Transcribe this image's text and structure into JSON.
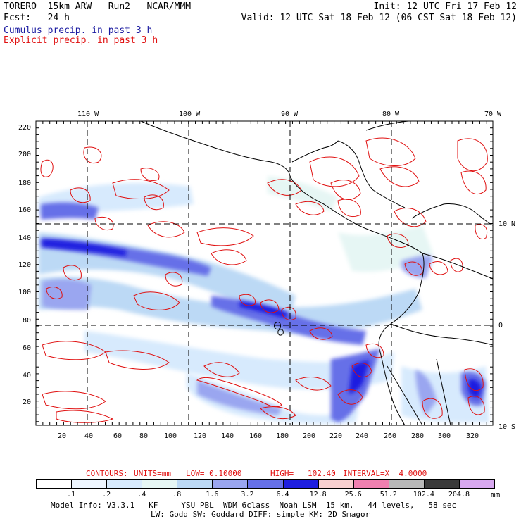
{
  "header": {
    "line1_left": "TORERO  15km ARW   Run2   NCAR/MMM",
    "line1_right": "Init: 12 UTC Fri 17 Feb 12",
    "line2_left": "Fcst:   24 h",
    "line2_right": "Valid: 12 UTC Sat 18 Feb 12 (06 CST Sat 18 Feb 12)",
    "line3": "Cumulus precip. in past 3 h",
    "line4": "Explicit precip. in past 3 h"
  },
  "map": {
    "top_lon_labels": [
      "110 W",
      "100 W",
      "90 W",
      "80 W",
      "70 W"
    ],
    "right_lat_labels": [
      "10 N",
      "0",
      "10 S"
    ],
    "left_ticks": [
      "220",
      "200",
      "180",
      "160",
      "140",
      "120",
      "100",
      "80",
      "60",
      "40",
      "20"
    ],
    "bottom_ticks": [
      "20",
      "40",
      "60",
      "80",
      "100",
      "120",
      "140",
      "160",
      "180",
      "200",
      "220",
      "240",
      "260",
      "280",
      "300",
      "320"
    ],
    "colors": {
      "frame": "#000000",
      "grid": "#000000",
      "coast": "#000000",
      "explicit": "#e01010"
    }
  },
  "contours_line": {
    "label": "CONTOURS:",
    "units": "UNITS=mm",
    "low": "LOW= 0.10000",
    "high": "HIGH=   102.40",
    "interval": "INTERVAL=X  4.0000"
  },
  "legend": {
    "labels": [
      ".1",
      ".2",
      ".4",
      ".8",
      "1.6",
      "3.2",
      "6.4",
      "12.8",
      "25.6",
      "51.2",
      "102.4",
      "204.8"
    ],
    "unit": "mm",
    "colors": [
      "#ffffff",
      "#eef6ff",
      "#d7eafd",
      "#e6f6f4",
      "#bcd9f5",
      "#9aa6f0",
      "#6670e8",
      "#1e1ee0",
      "#f8d0d0",
      "#f080b0",
      "#b8b8b8",
      "#3a3a3a",
      "#d8a8f0"
    ]
  },
  "footer": {
    "line1": "Model Info: V3.3.1   KF     YSU PBL  WDM 6class  Noah LSM  15 km,   44 levels,   58 sec",
    "line2": "LW: Godd SW: Goddard DIFF: simple KM: 2D Smagor"
  }
}
